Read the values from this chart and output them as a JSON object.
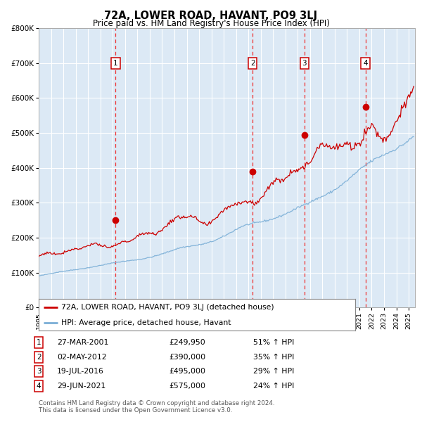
{
  "title": "72A, LOWER ROAD, HAVANT, PO9 3LJ",
  "subtitle": "Price paid vs. HM Land Registry's House Price Index (HPI)",
  "legend_line1": "72A, LOWER ROAD, HAVANT, PO9 3LJ (detached house)",
  "legend_line2": "HPI: Average price, detached house, Havant",
  "footer1": "Contains HM Land Registry data © Crown copyright and database right 2024.",
  "footer2": "This data is licensed under the Open Government Licence v3.0.",
  "transactions": [
    {
      "num": 1,
      "date": "27-MAR-2001",
      "price": 249950,
      "pct": "51% ↑ HPI",
      "year": 2001.23
    },
    {
      "num": 2,
      "date": "02-MAY-2012",
      "price": 390000,
      "pct": "35% ↑ HPI",
      "year": 2012.34
    },
    {
      "num": 3,
      "date": "19-JUL-2016",
      "price": 495000,
      "pct": "29% ↑ HPI",
      "year": 2016.55
    },
    {
      "num": 4,
      "date": "29-JUN-2021",
      "price": 575000,
      "pct": "24% ↑ HPI",
      "year": 2021.5
    }
  ],
  "background_color": "#dce9f5",
  "red_line_color": "#cc0000",
  "blue_line_color": "#7aaed6",
  "dashed_line_color": "#ee3333",
  "grid_color": "#ffffff",
  "ylim": [
    0,
    800000
  ],
  "xlim_start": 1995,
  "xlim_end": 2025.5
}
